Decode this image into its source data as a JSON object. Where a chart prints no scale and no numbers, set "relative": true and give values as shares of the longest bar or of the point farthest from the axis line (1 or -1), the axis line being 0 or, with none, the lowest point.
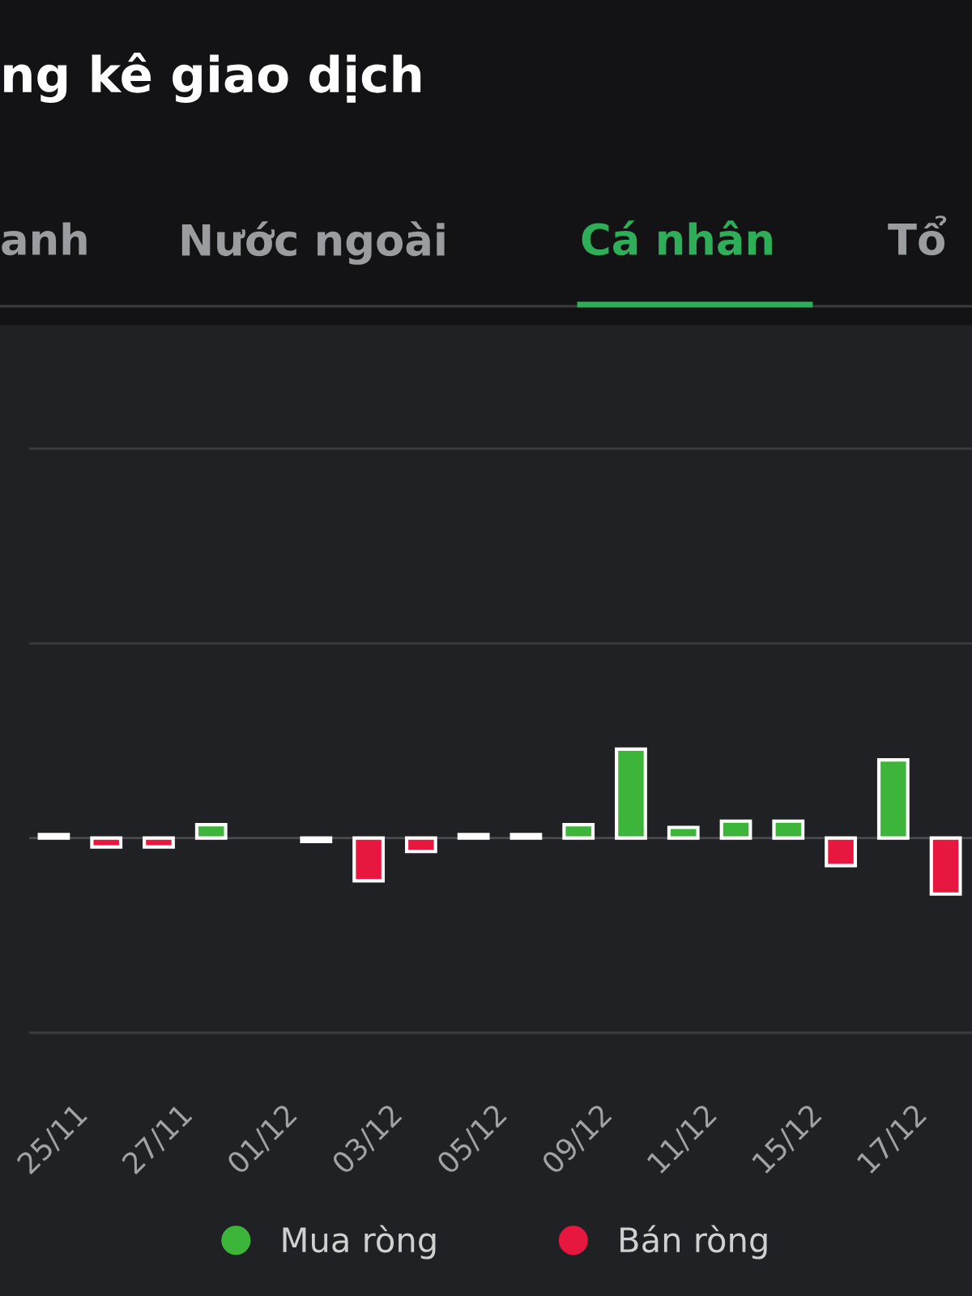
{
  "chart_data": {
    "type": "bar",
    "title": "ng kê giao dịch",
    "annotations": [
      "anh",
      "Nước ngoài",
      "Cá nhân",
      "Tổ"
    ],
    "categories": [
      "25/11",
      null,
      "27/11",
      null,
      "01/12",
      null,
      "03/12",
      null,
      "05/12",
      null,
      "09/12",
      null,
      "11/12",
      null,
      "15/12",
      null,
      "17/12",
      null
    ],
    "relative": true,
    "series": [
      {
        "name": "Mua ròng",
        "color": "#3db53a",
        "values": [
          0.04,
          null,
          null,
          0.15,
          null,
          null,
          null,
          null,
          0.04,
          0.04,
          0.15,
          1,
          0.12,
          0.19,
          0.19,
          null,
          0.88,
          null
        ],
        "colors": [
          "#ffffff",
          null,
          null,
          "#3db53a",
          "#3db53a",
          null,
          null,
          null,
          "#ffffff",
          "#ffffff",
          "#3db53a",
          "#3db53a",
          "#3db53a",
          "#3db53a",
          "#3db53a",
          null,
          "#3db53a",
          null
        ]
      },
      {
        "name": "Bán ròng",
        "color": "#e8173f",
        "values": [
          null,
          -0.1,
          -0.1,
          null,
          null,
          -0.04,
          -0.48,
          -0.15,
          null,
          null,
          null,
          null,
          null,
          null,
          null,
          -0.31,
          null,
          -0.63
        ],
        "colors": [
          null,
          "#e8173f",
          "#e8173f",
          null,
          null,
          "#ffffff",
          "#e8173f",
          "#e8173f",
          null,
          null,
          null,
          null,
          null,
          null,
          null,
          "#e8173f",
          null,
          "#e8173f"
        ]
      }
    ],
    "legend": "bottom"
  }
}
